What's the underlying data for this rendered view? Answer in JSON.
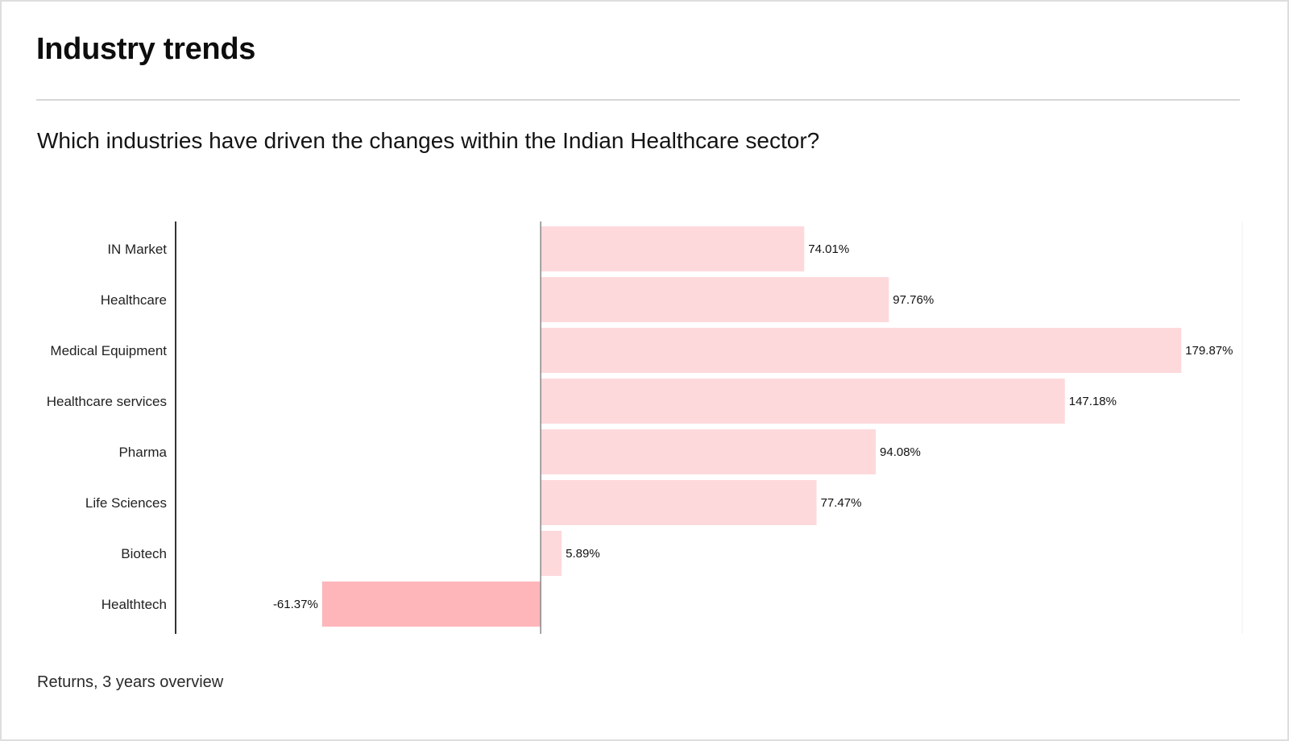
{
  "header": {
    "title": "Industry trends",
    "question": "Which industries have driven the changes within the Indian Healthcare sector?"
  },
  "footer": {
    "caption": "Returns, 3 years overview"
  },
  "colors": {
    "positive_bar": "#fdd9dc",
    "negative_bar": "#feb6bb",
    "axis": "#333333",
    "zero_line": "#888888"
  },
  "chart_data": {
    "type": "bar",
    "orientation": "horizontal",
    "categories": [
      "IN Market",
      "Healthcare",
      "Medical Equipment",
      "Healthcare services",
      "Pharma",
      "Life Sciences",
      "Biotech",
      "Healthtech"
    ],
    "values": [
      74.01,
      97.76,
      179.87,
      147.18,
      94.08,
      77.47,
      5.89,
      -61.37
    ],
    "value_labels": [
      "74.01%",
      "97.76%",
      "179.87%",
      "147.18%",
      "94.08%",
      "77.47%",
      "5.89%",
      "-61.37%"
    ],
    "xlim": [
      -102.5,
      197
    ],
    "grid": false,
    "legend": "none"
  }
}
